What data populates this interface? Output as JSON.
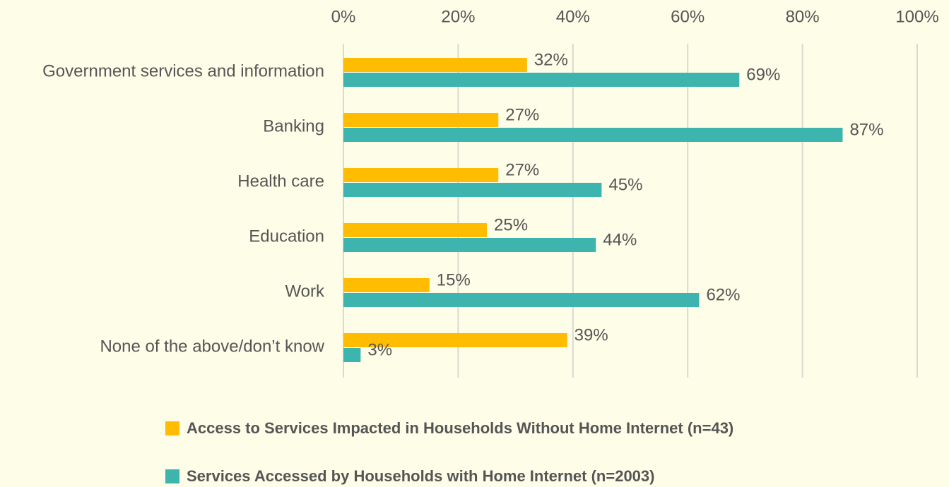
{
  "chart_data": {
    "type": "hbar",
    "categories": [
      "Government services and information",
      "Banking",
      "Health care",
      "Education",
      "Work",
      "None of the above/don’t know"
    ],
    "series": [
      {
        "name": "Access to Services Impacted in Households Without Home Internet (n=43)",
        "color": "#ffbc00",
        "values": [
          32,
          27,
          27,
          25,
          15,
          39
        ],
        "value_labels": [
          "32%",
          "27%",
          "27%",
          "25%",
          "15%",
          "39%"
        ]
      },
      {
        "name": "Services Accessed by Households with Home Internet (n=2003)",
        "color": "#3db5ae",
        "values": [
          69,
          87,
          45,
          44,
          62,
          3
        ],
        "value_labels": [
          "69%",
          "87%",
          "45%",
          "44%",
          "62%",
          "3%"
        ]
      }
    ],
    "xlim": [
      0,
      100
    ],
    "xticks": [
      {
        "value": 0,
        "label": "0%"
      },
      {
        "value": 20,
        "label": "20%"
      },
      {
        "value": 40,
        "label": "40%"
      },
      {
        "value": 60,
        "label": "60%"
      },
      {
        "value": 80,
        "label": "80%"
      },
      {
        "value": 100,
        "label": "100%"
      }
    ],
    "grid": true,
    "legend": "bottom"
  }
}
